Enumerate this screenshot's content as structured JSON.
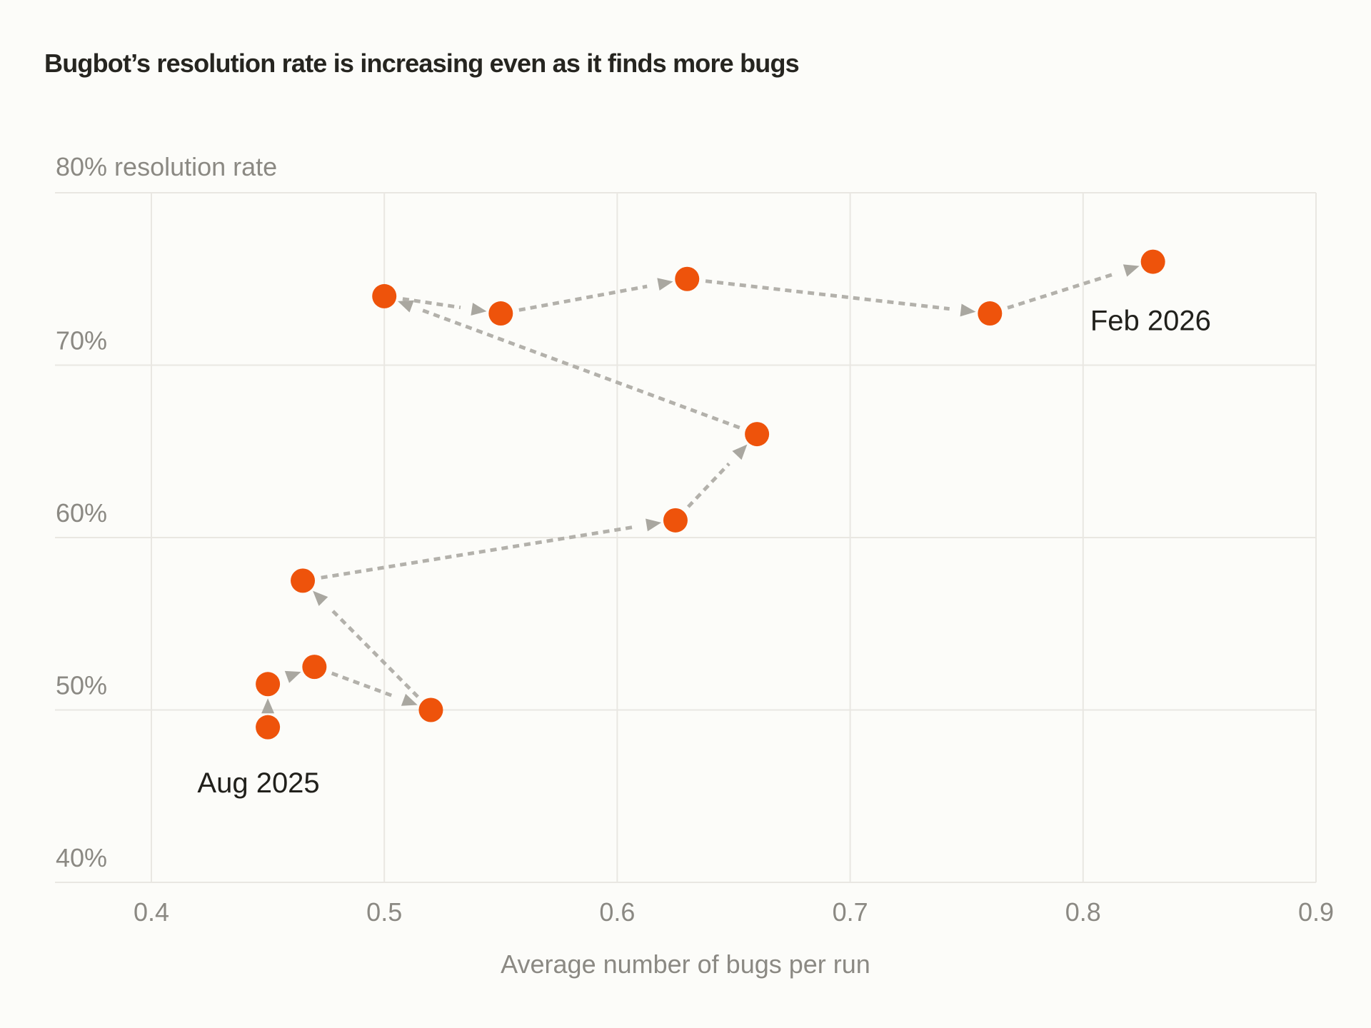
{
  "page": {
    "background_color": "#FCFCF9"
  },
  "chart_data": {
    "type": "scatter",
    "title": "Bugbot’s resolution rate is increasing even as it finds more bugs",
    "y_axis_top_label": "80% resolution rate",
    "xlabel": "Average number of bugs per run",
    "xlim": [
      0.4,
      0.9
    ],
    "ylim": [
      40,
      80
    ],
    "grid": true,
    "x_ticks": [
      {
        "value": 0.4,
        "label": "0.4"
      },
      {
        "value": 0.5,
        "label": "0.5"
      },
      {
        "value": 0.6,
        "label": "0.6"
      },
      {
        "value": 0.7,
        "label": "0.7"
      },
      {
        "value": 0.8,
        "label": "0.8"
      },
      {
        "value": 0.9,
        "label": "0.9"
      }
    ],
    "y_ticks": [
      {
        "value": 70,
        "label": "70%"
      },
      {
        "value": 60,
        "label": "60%"
      },
      {
        "value": 50,
        "label": "50%"
      },
      {
        "value": 40,
        "label": "40%"
      }
    ],
    "y_gridline_values": [
      40,
      50,
      60,
      70,
      80
    ],
    "points_note": "connected scatter path in time order from Aug 2025 to Feb 2026, x = avg bugs per run, y = resolution rate (%)",
    "points": [
      {
        "x": 0.45,
        "y": 49
      },
      {
        "x": 0.45,
        "y": 51.5
      },
      {
        "x": 0.47,
        "y": 52.5
      },
      {
        "x": 0.52,
        "y": 50
      },
      {
        "x": 0.465,
        "y": 57.5
      },
      {
        "x": 0.625,
        "y": 61
      },
      {
        "x": 0.66,
        "y": 66
      },
      {
        "x": 0.5,
        "y": 74
      },
      {
        "x": 0.55,
        "y": 73
      },
      {
        "x": 0.63,
        "y": 75
      },
      {
        "x": 0.76,
        "y": 73
      },
      {
        "x": 0.83,
        "y": 76
      }
    ],
    "annotations": [
      {
        "text": "Aug 2025",
        "x": 0.446,
        "y": 45.8
      },
      {
        "text": "Feb 2026",
        "x": 0.829,
        "y": 72.6
      }
    ],
    "colors": {
      "point": "#EE530B",
      "arrow_line": "#B3B1AB",
      "arrow_head": "#A9A7A0",
      "gridline": "#E9E7E2",
      "tick_text": "#8B8983",
      "title_text": "#262520",
      "annotation_text": "#21201B"
    }
  }
}
